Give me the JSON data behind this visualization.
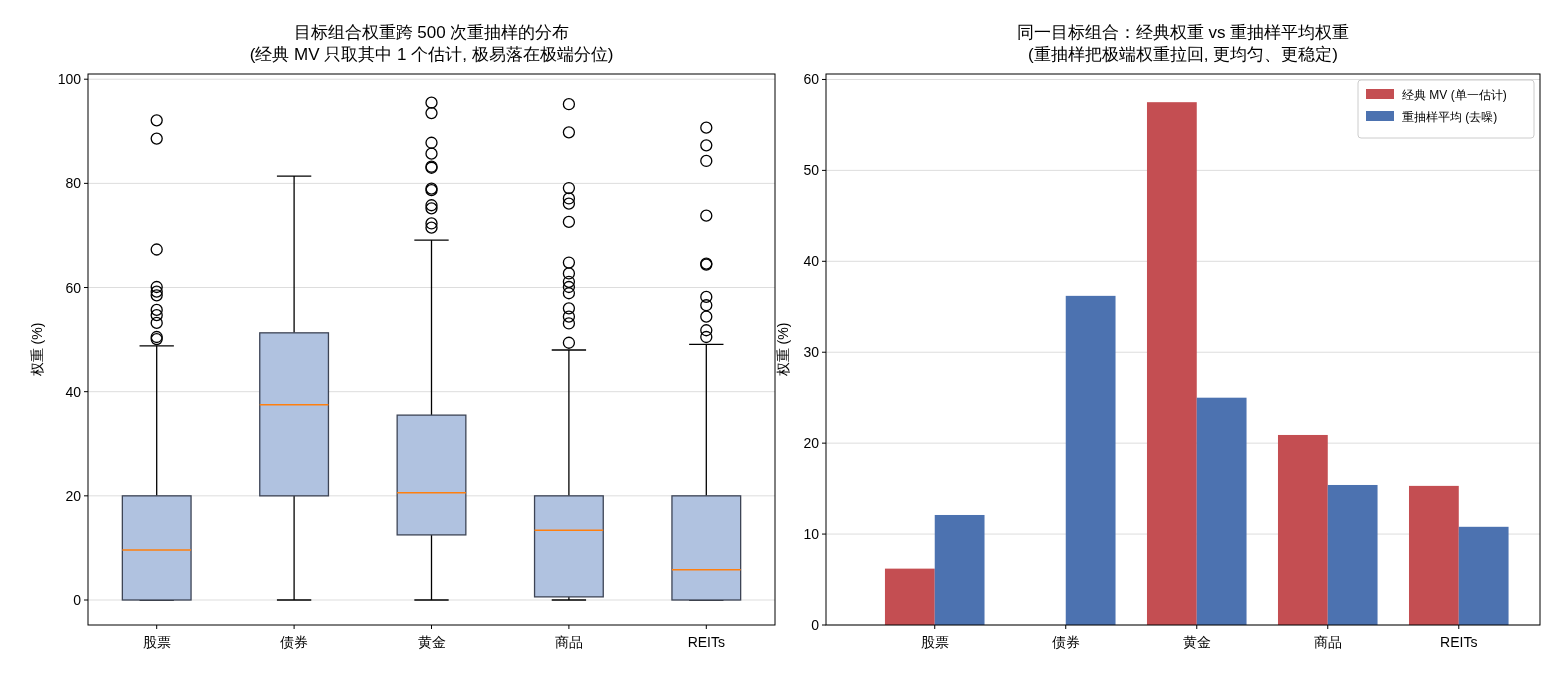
{
  "chart_data": [
    {
      "type": "box",
      "title": "目标组合权重跨 500 次重抽样的分布\n(经典 MV 只取其中 1 个估计, 极易落在极端分位)",
      "ylabel": "权重 (%)",
      "categories": [
        "股票",
        "债券",
        "黄金",
        "商品",
        "REITs"
      ],
      "ylim": [
        -4.8,
        101
      ],
      "yticks": [
        0,
        20,
        40,
        60,
        80,
        100
      ],
      "grid": "y",
      "series": [
        {
          "color": "#b0c2e0",
          "boxes": [
            {
              "low": 0,
              "q1": 0,
              "median": 9.6,
              "q3": 20,
              "high": 48.8,
              "outliers": [
                92.1,
                88.6,
                67.3,
                60.1,
                59.2,
                58.5,
                55.7,
                54.7,
                53.2,
                50.5,
                50.1
              ]
            },
            {
              "low": 0,
              "q1": 20,
              "median": 37.5,
              "q3": 51.3,
              "high": 81.4
            },
            {
              "low": 0,
              "q1": 12.5,
              "median": 20.6,
              "q3": 35.5,
              "high": 69.1,
              "outliers": [
                95.5,
                93.5,
                87.8,
                85.7,
                83.2,
                83.0,
                79.0,
                78.7,
                75.8,
                75.2,
                72.3,
                71.5
              ]
            },
            {
              "low": 0,
              "q1": 0.6,
              "median": 13.4,
              "q3": 20,
              "high": 48.0,
              "outliers": [
                95.2,
                89.8,
                79.1,
                77.1,
                76.1,
                72.6,
                64.8,
                62.7,
                61.1,
                60.1,
                58.9,
                56.0,
                54.4,
                53.1,
                49.4
              ]
            },
            {
              "low": 0,
              "q1": 0,
              "median": 5.8,
              "q3": 20,
              "high": 49.1,
              "outliers": [
                90.7,
                87.3,
                84.3,
                73.8,
                64.6,
                64.4,
                58.2,
                56.6,
                54.4,
                51.8,
                50.5
              ]
            }
          ]
        }
      ]
    },
    {
      "type": "bar",
      "title": "同一目标组合：经典权重 vs 重抽样平均权重\n(重抽样把极端权重拉回, 更均匀、更稳定)",
      "ylabel": "权重 (%)",
      "categories": [
        "股票",
        "债券",
        "黄金",
        "商品",
        "REITs"
      ],
      "ylim": [
        0,
        60.6
      ],
      "yticks": [
        0,
        10,
        20,
        30,
        40,
        50,
        60
      ],
      "grid": "y",
      "legend": "top right",
      "series": [
        {
          "name": "经典 MV (单一估计)",
          "color": "#c44e52",
          "values": [
            6.2,
            0,
            57.5,
            20.9,
            15.3
          ]
        },
        {
          "name": "重抽样平均 (去噪)",
          "color": "#4c72b0",
          "values": [
            12.1,
            36.2,
            25.0,
            15.4,
            10.8
          ]
        }
      ]
    }
  ]
}
